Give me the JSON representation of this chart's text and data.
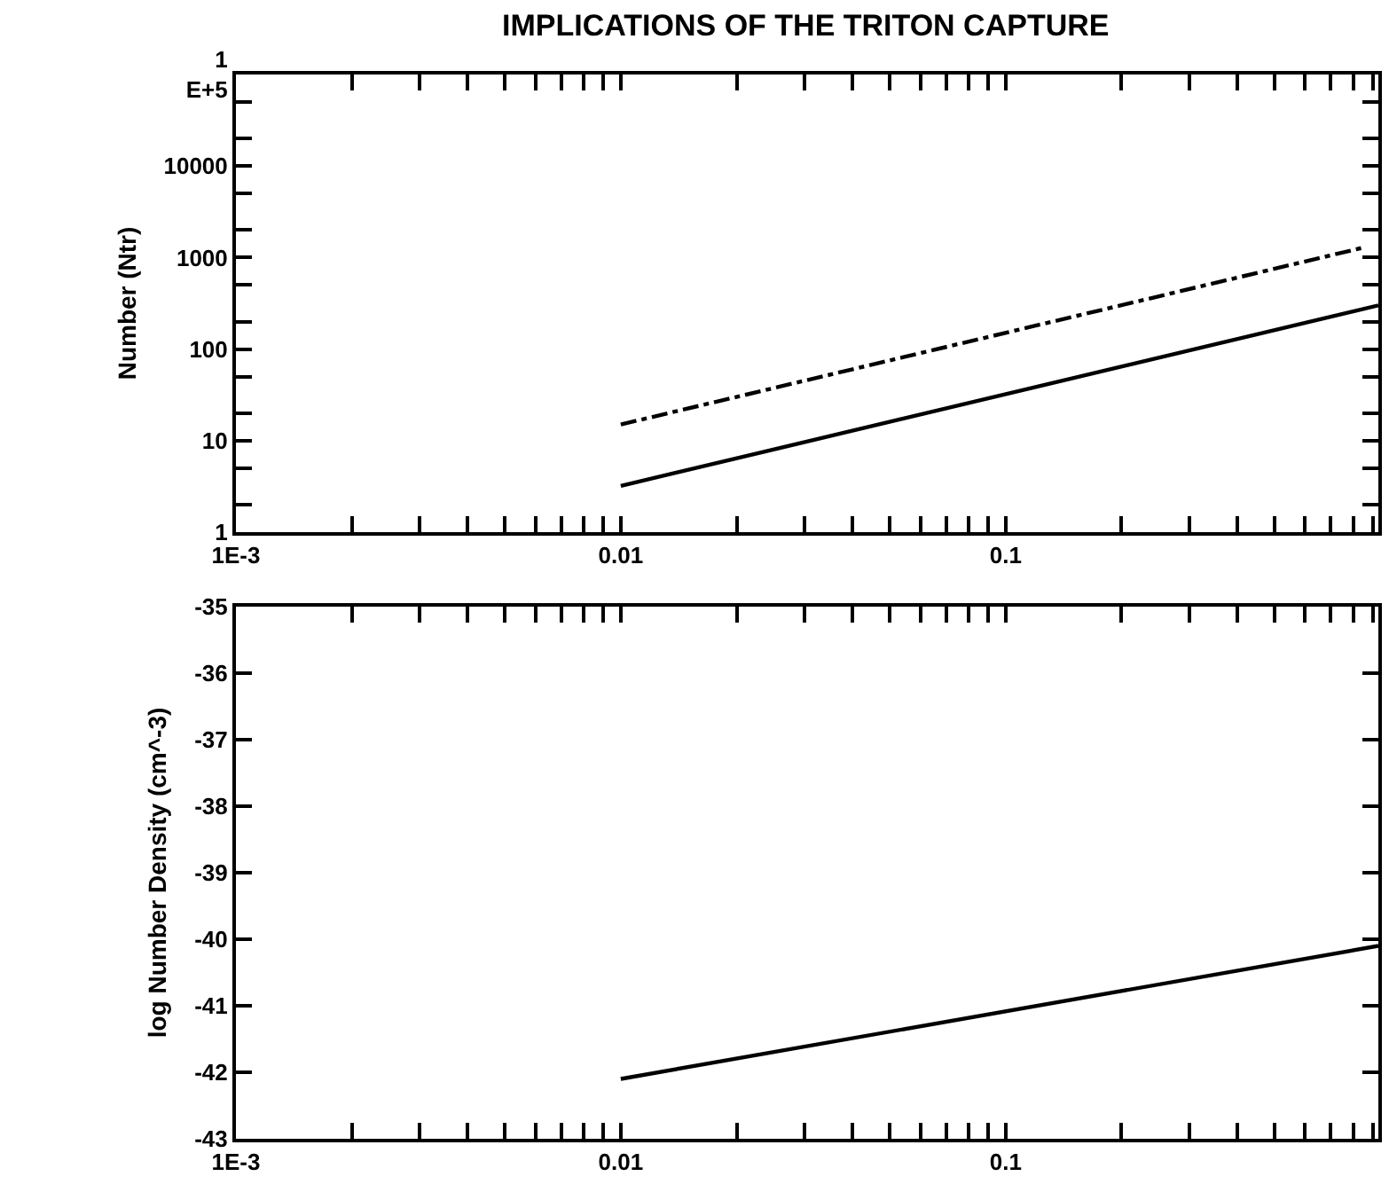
{
  "chart_data": [
    {
      "type": "line",
      "title": "IMPLICATIONS OF THE TRITON CAPTURE",
      "ylabel": "Number (Ntr)",
      "log": "xy",
      "xlim": [
        0.001,
        0.93
      ],
      "xticks": [
        {
          "value": 0.001,
          "label": "1E-3"
        },
        {
          "value": 0.002,
          "label": null
        },
        {
          "value": 0.003,
          "label": null
        },
        {
          "value": 0.004,
          "label": null
        },
        {
          "value": 0.005,
          "label": null
        },
        {
          "value": 0.006,
          "label": null
        },
        {
          "value": 0.007,
          "label": null
        },
        {
          "value": 0.008,
          "label": null
        },
        {
          "value": 0.009,
          "label": null
        },
        {
          "value": 0.01,
          "label": "0.01"
        },
        {
          "value": 0.02,
          "label": null
        },
        {
          "value": 0.03,
          "label": null
        },
        {
          "value": 0.04,
          "label": null
        },
        {
          "value": 0.05,
          "label": null
        },
        {
          "value": 0.06,
          "label": null
        },
        {
          "value": 0.07,
          "label": null
        },
        {
          "value": 0.08,
          "label": null
        },
        {
          "value": 0.09,
          "label": null
        },
        {
          "value": 0.1,
          "label": "0.1"
        },
        {
          "value": 0.2,
          "label": null
        },
        {
          "value": 0.3,
          "label": null
        },
        {
          "value": 0.4,
          "label": null
        },
        {
          "value": 0.5,
          "label": null
        },
        {
          "value": 0.6,
          "label": null
        },
        {
          "value": 0.7,
          "label": null
        },
        {
          "value": 0.8,
          "label": null
        },
        {
          "value": 0.9,
          "label": null
        }
      ],
      "ylim": [
        1,
        100000
      ],
      "yticks": [
        1,
        {
          "value": 2,
          "label": null
        },
        {
          "value": 5,
          "label": null
        },
        10,
        {
          "value": 20,
          "label": null
        },
        {
          "value": 50,
          "label": null
        },
        100,
        {
          "value": 200,
          "label": null
        },
        {
          "value": 500,
          "label": null
        },
        1000,
        {
          "value": 2000,
          "label": null
        },
        {
          "value": 5000,
          "label": null
        },
        10000,
        {
          "value": 20000,
          "label": null
        },
        {
          "value": 50000,
          "label": null
        },
        {
          "value": 100000,
          "label": "1\nE+5"
        }
      ],
      "series": [
        {
          "color": "#000000",
          "line_style": "solid",
          "x": [
            0.01,
            0.93
          ],
          "values": [
            3.2,
            300
          ]
        },
        {
          "color": "#000000",
          "line_style": "dashed",
          "x": [
            0.01,
            0.86
          ],
          "values": [
            15,
            1300
          ]
        }
      ]
    },
    {
      "type": "line",
      "ylabel": "log Number Density (cm^-3)",
      "log": "x",
      "xlim": [
        0.001,
        0.93
      ],
      "xticks": [
        {
          "value": 0.001,
          "label": "1E-3"
        },
        {
          "value": 0.002,
          "label": null
        },
        {
          "value": 0.003,
          "label": null
        },
        {
          "value": 0.004,
          "label": null
        },
        {
          "value": 0.005,
          "label": null
        },
        {
          "value": 0.006,
          "label": null
        },
        {
          "value": 0.007,
          "label": null
        },
        {
          "value": 0.008,
          "label": null
        },
        {
          "value": 0.009,
          "label": null
        },
        {
          "value": 0.01,
          "label": "0.01"
        },
        {
          "value": 0.02,
          "label": null
        },
        {
          "value": 0.03,
          "label": null
        },
        {
          "value": 0.04,
          "label": null
        },
        {
          "value": 0.05,
          "label": null
        },
        {
          "value": 0.06,
          "label": null
        },
        {
          "value": 0.07,
          "label": null
        },
        {
          "value": 0.08,
          "label": null
        },
        {
          "value": 0.09,
          "label": null
        },
        {
          "value": 0.1,
          "label": "0.1"
        },
        {
          "value": 0.2,
          "label": null
        },
        {
          "value": 0.3,
          "label": null
        },
        {
          "value": 0.4,
          "label": null
        },
        {
          "value": 0.5,
          "label": null
        },
        {
          "value": 0.6,
          "label": null
        },
        {
          "value": 0.7,
          "label": null
        },
        {
          "value": 0.8,
          "label": null
        },
        {
          "value": 0.9,
          "label": null
        }
      ],
      "ylim": [
        -43,
        -35
      ],
      "yticks": [
        -43,
        -42,
        -41,
        -40,
        -39,
        -38,
        -37,
        -36,
        -35
      ],
      "series": [
        {
          "color": "#000000",
          "line_style": "solid",
          "x": [
            0.01,
            0.93
          ],
          "values": [
            -42.1,
            -40.1
          ]
        }
      ]
    }
  ]
}
